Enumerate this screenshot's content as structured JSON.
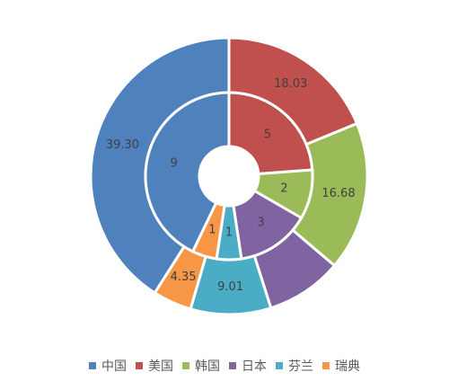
{
  "chart_data": {
    "type": "pie",
    "subtype": "doughnut",
    "title": "",
    "categories": [
      "中国",
      "美国",
      "韩国",
      "日本",
      "芬兰",
      "瑞典"
    ],
    "colors": [
      "#4F81BD",
      "#C0504D",
      "#9BBB59",
      "#8064A2",
      "#4BACC6",
      "#F79646"
    ],
    "series": [
      {
        "ring": "outer",
        "values": [
          39.3,
          18.03,
          16.68,
          8.54,
          9.01,
          4.35
        ],
        "labels": [
          "39.30",
          "18.03",
          "16.68",
          "",
          "9.01",
          "4.35"
        ]
      },
      {
        "ring": "inner",
        "values": [
          9,
          5,
          2,
          3,
          1,
          1
        ],
        "labels": [
          "9",
          "5",
          "2",
          "3",
          "1",
          "1"
        ]
      }
    ],
    "legend_position": "bottom",
    "grid": false
  }
}
